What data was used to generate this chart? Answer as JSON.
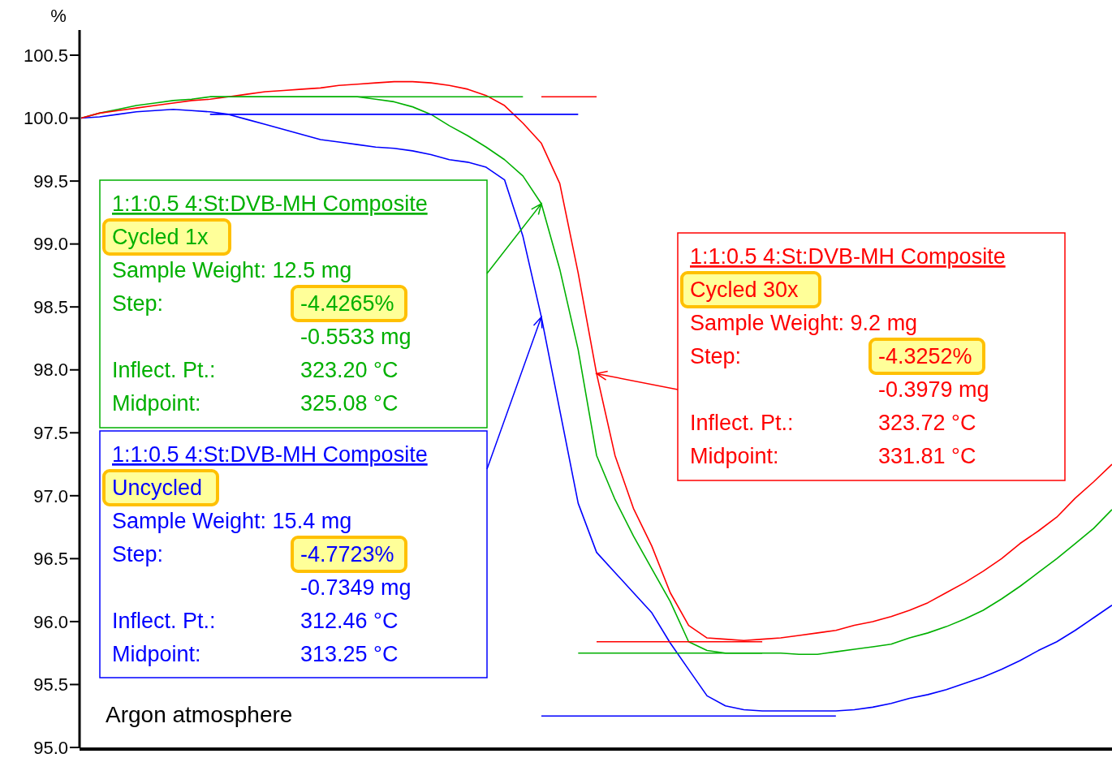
{
  "chart_data": {
    "type": "line",
    "ylabel": "%",
    "categories": [
      null,
      null,
      null,
      null,
      null,
      null,
      null,
      null,
      null,
      null,
      null,
      null,
      null,
      null,
      null,
      null,
      null,
      null,
      null,
      null,
      null,
      null,
      null,
      null,
      null,
      null,
      null,
      null,
      null,
      null,
      null,
      null,
      null,
      null,
      null,
      null,
      null,
      null,
      null,
      null,
      null,
      null,
      null,
      null,
      null,
      null,
      null,
      null,
      null,
      null,
      null,
      null,
      null,
      null,
      null,
      null,
      null
    ],
    "ylim": [
      95,
      100.7
    ],
    "yticks": [
      {
        "value": 95,
        "label": "95.0"
      },
      95.5,
      {
        "value": 96,
        "label": "96.0"
      },
      96.5,
      {
        "value": 97,
        "label": "97.0"
      },
      97.5,
      {
        "value": 98,
        "label": "98.0"
      },
      98.5,
      {
        "value": 99,
        "label": "99.0"
      },
      99.5,
      {
        "value": 100,
        "label": "100.0"
      },
      100.5
    ],
    "tick_labels": "y",
    "grid": false,
    "marker": "none",
    "line_style": "solid",
    "series": [
      {
        "color": "#00b000",
        "values": [
          100.0,
          100.04,
          100.07,
          100.1,
          100.12,
          100.14,
          100.15,
          100.17,
          100.17,
          100.17,
          100.17,
          100.17,
          100.17,
          100.17,
          100.17,
          100.17,
          100.15,
          100.13,
          100.09,
          100.03,
          99.94,
          99.86,
          99.77,
          99.67,
          99.54,
          99.32,
          98.8,
          98.16,
          97.32,
          96.97,
          96.68,
          96.42,
          96.16,
          95.84,
          95.77,
          95.75,
          95.75,
          95.75,
          95.75,
          95.74,
          95.74,
          95.76,
          95.78,
          95.8,
          95.82,
          95.87,
          95.91,
          95.96,
          96.02,
          96.09,
          96.18,
          96.28,
          96.39,
          96.5,
          96.62,
          96.74,
          96.89
        ]
      },
      {
        "color": "#0000ff",
        "values": [
          100.0,
          100.01,
          100.03,
          100.05,
          100.06,
          100.07,
          100.06,
          100.05,
          100.03,
          99.99,
          99.95,
          99.91,
          99.87,
          99.83,
          99.81,
          99.79,
          99.77,
          99.76,
          99.74,
          99.71,
          99.67,
          99.65,
          99.61,
          99.51,
          99.06,
          98.42,
          97.68,
          96.94,
          96.55,
          96.39,
          96.23,
          96.07,
          95.83,
          95.62,
          95.41,
          95.33,
          95.3,
          95.29,
          95.29,
          95.29,
          95.29,
          95.29,
          95.3,
          95.32,
          95.35,
          95.39,
          95.42,
          95.46,
          95.51,
          95.56,
          95.62,
          95.69,
          95.77,
          95.84,
          95.93,
          96.03,
          96.13
        ]
      },
      {
        "color": "#ff0000",
        "values": [
          100.0,
          100.04,
          100.06,
          100.08,
          100.1,
          100.12,
          100.14,
          100.15,
          100.17,
          100.19,
          100.21,
          100.22,
          100.23,
          100.24,
          100.26,
          100.27,
          100.28,
          100.29,
          100.29,
          100.28,
          100.26,
          100.23,
          100.18,
          100.1,
          99.96,
          99.8,
          99.48,
          98.77,
          97.97,
          97.32,
          96.9,
          96.6,
          96.23,
          95.97,
          95.87,
          95.86,
          95.85,
          95.86,
          95.87,
          95.89,
          95.91,
          95.93,
          95.97,
          96.0,
          96.04,
          96.09,
          96.15,
          96.23,
          96.31,
          96.4,
          96.5,
          96.62,
          96.72,
          96.83,
          96.98,
          97.11,
          97.25
        ]
      },
      {
        "color": "#00b000",
        "values": [
          null,
          null,
          null,
          null,
          null,
          null,
          null,
          100.17,
          100.17,
          100.17,
          100.17,
          100.17,
          100.17,
          100.17,
          100.17,
          100.17,
          100.17,
          100.17,
          100.17,
          100.17,
          100.17,
          100.17,
          100.17,
          100.17,
          100.17,
          null,
          null,
          null,
          null,
          null,
          null,
          null,
          null,
          null,
          null,
          null,
          null,
          null,
          null,
          null,
          null,
          null,
          null,
          null,
          null,
          null,
          null,
          null,
          null,
          null,
          null,
          null,
          null,
          null,
          null,
          null,
          null
        ]
      },
      {
        "color": "#00b000",
        "values": [
          null,
          null,
          null,
          null,
          null,
          null,
          null,
          null,
          null,
          null,
          null,
          null,
          null,
          null,
          null,
          null,
          null,
          null,
          null,
          null,
          null,
          null,
          null,
          null,
          null,
          null,
          null,
          95.75,
          95.75,
          95.75,
          95.75,
          95.75,
          95.75,
          95.75,
          95.75,
          95.75,
          95.75,
          95.75,
          null,
          null,
          null,
          null,
          null,
          null,
          null,
          null,
          null,
          null,
          null,
          null,
          null,
          null,
          null,
          null,
          null,
          null,
          null
        ]
      },
      {
        "color": "#0000ff",
        "values": [
          null,
          null,
          null,
          null,
          null,
          null,
          null,
          100.03,
          100.03,
          100.03,
          100.03,
          100.03,
          100.03,
          100.03,
          100.03,
          100.03,
          100.03,
          100.03,
          100.03,
          100.03,
          100.03,
          100.03,
          100.03,
          100.03,
          100.03,
          100.03,
          100.03,
          100.03,
          null,
          null,
          null,
          null,
          null,
          null,
          null,
          null,
          null,
          null,
          null,
          null,
          null,
          null,
          null,
          null,
          null,
          null,
          null,
          null,
          null,
          null,
          null,
          null,
          null,
          null,
          null,
          null,
          null
        ]
      },
      {
        "color": "#0000ff",
        "values": [
          null,
          null,
          null,
          null,
          null,
          null,
          null,
          null,
          null,
          null,
          null,
          null,
          null,
          null,
          null,
          null,
          null,
          null,
          null,
          null,
          null,
          null,
          null,
          null,
          null,
          95.25,
          95.25,
          95.25,
          95.25,
          95.25,
          95.25,
          95.25,
          95.25,
          95.25,
          95.25,
          95.25,
          95.25,
          95.25,
          95.25,
          95.25,
          95.25,
          95.25,
          null,
          null,
          null,
          null,
          null,
          null,
          null,
          null,
          null,
          null,
          null,
          null,
          null,
          null,
          null
        ]
      },
      {
        "color": "#ff0000",
        "values": [
          null,
          null,
          null,
          null,
          null,
          null,
          null,
          null,
          null,
          null,
          null,
          null,
          null,
          null,
          null,
          null,
          null,
          null,
          null,
          null,
          null,
          null,
          null,
          null,
          null,
          100.17,
          100.17,
          100.17,
          100.17,
          null,
          null,
          null,
          null,
          null,
          null,
          null,
          null,
          null,
          null,
          null,
          null,
          null,
          null,
          null,
          null,
          null,
          null,
          null,
          null,
          null,
          null,
          null,
          null,
          null,
          null,
          null,
          null
        ]
      },
      {
        "color": "#ff0000",
        "values": [
          null,
          null,
          null,
          null,
          null,
          null,
          null,
          null,
          null,
          null,
          null,
          null,
          null,
          null,
          null,
          null,
          null,
          null,
          null,
          null,
          null,
          null,
          null,
          null,
          null,
          null,
          null,
          null,
          95.84,
          95.84,
          95.84,
          95.84,
          95.84,
          95.84,
          95.84,
          95.84,
          95.84,
          95.84,
          null,
          null,
          null,
          null,
          null,
          null,
          null,
          null,
          null,
          null,
          null,
          null,
          null,
          null,
          null,
          null,
          null,
          null,
          null
        ]
      }
    ],
    "annotations": [
      "1:1:0.5 4:St:DVB-MH Composite\nCycled 1x\nSample Weight: 12.5 mg\nStep:\t-4.4265%\n\t-0.5533 mg\nInflect. Pt.:\t323.20 °C\nMidpoint:\t325.08 °C",
      "1:1:0.5 4:St:DVB-MH Composite\nUncycled\nSample Weight: 15.4 mg\nStep:\t-4.7723%\n\t-0.7349 mg\nInflect. Pt.:\t312.46 °C\nMidpoint:\t313.25 °C",
      "1:1:0.5 4:St:DVB-MH Composite\nCycled 30x\nSample Weight: 9.2 mg\nStep:\t-4.3252%\n\t-0.3979 mg\nInflect. Pt.:\t323.72 °C\nMidpoint:\t331.81 °C",
      "Argon atmosphere"
    ]
  }
}
